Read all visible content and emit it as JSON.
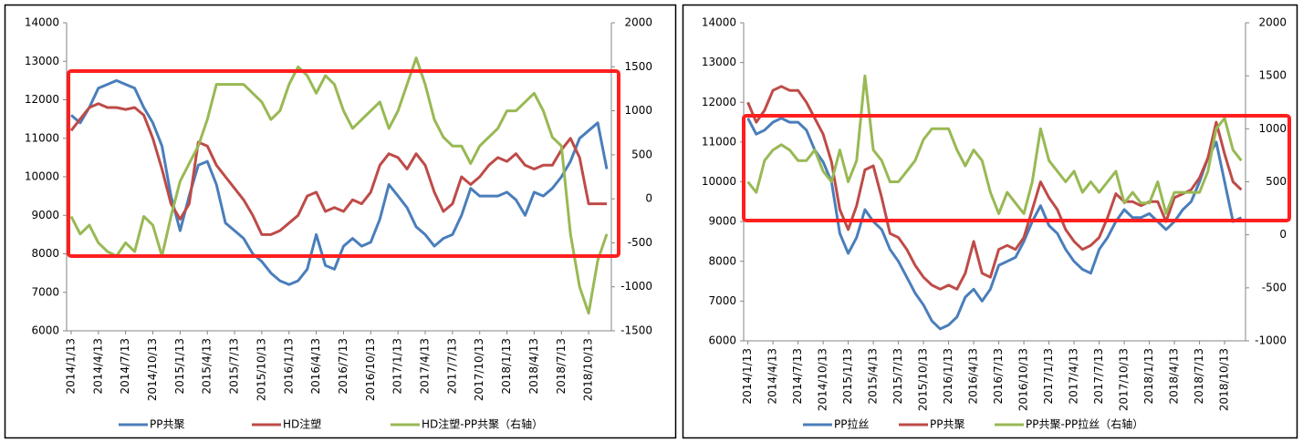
{
  "chart_data": [
    {
      "type": "line",
      "categories": [
        "2014/1/13",
        null,
        null,
        "2014/4/13",
        null,
        null,
        "2014/7/13",
        null,
        null,
        "2014/10/13",
        null,
        null,
        "2015/1/13",
        null,
        null,
        "2015/4/13",
        null,
        null,
        "2015/7/13",
        null,
        null,
        "2015/10/13",
        null,
        null,
        "2016/1/13",
        null,
        null,
        "2016/4/13",
        null,
        null,
        "2016/7/13",
        null,
        null,
        "2016/10/13",
        null,
        null,
        "2017/1/13",
        null,
        null,
        "2017/4/13",
        null,
        null,
        "2017/7/13",
        null,
        null,
        "2017/10/13",
        null,
        null,
        "2018/1/13",
        null,
        null,
        "2018/4/13",
        null,
        null,
        "2018/7/13",
        null,
        null,
        "2018/10/13",
        null,
        null
      ],
      "series": [
        {
          "name": "PP共聚",
          "color": "#4a7ebb",
          "values": [
            11600,
            11400,
            11800,
            12300,
            12400,
            12500,
            12400,
            12300,
            11800,
            11400,
            10800,
            9500,
            8600,
            9500,
            10300,
            10400,
            9800,
            8800,
            8600,
            8400,
            8000,
            7800,
            7500,
            7300,
            7200,
            7300,
            7600,
            8500,
            7700,
            7600,
            8200,
            8400,
            8200,
            8300,
            8900,
            9800,
            9500,
            9200,
            8700,
            8500,
            8200,
            8400,
            8500,
            9000,
            9700,
            9500,
            9500,
            9500,
            9600,
            9400,
            9000,
            9600,
            9500,
            9700,
            10000,
            10400,
            11000,
            11200,
            11400,
            10200
          ]
        },
        {
          "name": "HD注塑",
          "color": "#be4b48",
          "values": [
            11200,
            11500,
            11800,
            11900,
            11800,
            11800,
            11750,
            11800,
            11600,
            11000,
            10200,
            9300,
            8900,
            9300,
            10900,
            10800,
            10300,
            10000,
            9700,
            9400,
            9000,
            8500,
            8500,
            8600,
            8800,
            9000,
            9500,
            9600,
            9100,
            9200,
            9100,
            9400,
            9300,
            9600,
            10300,
            10600,
            10500,
            10200,
            10600,
            10300,
            9600,
            9100,
            9300,
            10000,
            9800,
            10000,
            10300,
            10500,
            10400,
            10600,
            10300,
            10200,
            10300,
            10300,
            10700,
            11000,
            10500,
            9300,
            9300,
            9300
          ]
        },
        {
          "name": "HD注塑-PP共聚（右轴）",
          "color": "#98b954",
          "axis": "y2",
          "values": [
            -200,
            -400,
            -300,
            -500,
            -600,
            -650,
            -500,
            -600,
            -200,
            -300,
            -650,
            -200,
            200,
            400,
            600,
            900,
            1300,
            1300,
            1300,
            1300,
            1200,
            1100,
            900,
            1000,
            1300,
            1500,
            1400,
            1200,
            1400,
            1300,
            1000,
            800,
            900,
            1000,
            1100,
            800,
            1000,
            1300,
            1600,
            1300,
            900,
            700,
            600,
            600,
            400,
            600,
            700,
            800,
            1000,
            1000,
            1100,
            1200,
            1000,
            700,
            600,
            -400,
            -1000,
            -1300,
            -700,
            -400
          ]
        }
      ],
      "ylim": [
        6000,
        14000
      ],
      "yticks": [
        6000,
        7000,
        8000,
        9000,
        10000,
        11000,
        12000,
        13000,
        14000
      ],
      "y2lim": [
        -1500,
        2000
      ],
      "y2ticks": [
        -1500,
        -1000,
        -500,
        0,
        500,
        1000,
        1500,
        2000
      ],
      "legend": "bottom",
      "grid": false
    },
    {
      "type": "line",
      "categories": [
        "2014/1/13",
        null,
        null,
        "2014/4/13",
        null,
        null,
        "2014/7/13",
        null,
        null,
        "2014/10/13",
        null,
        null,
        "2015/1/13",
        null,
        null,
        "2015/4/13",
        null,
        null,
        "2015/7/13",
        null,
        null,
        "2015/10/13",
        null,
        null,
        "2016/1/13",
        null,
        null,
        "2016/4/13",
        null,
        null,
        "2016/7/13",
        null,
        null,
        "2016/10/13",
        null,
        null,
        "2017/1/13",
        null,
        null,
        "2017/4/13",
        null,
        null,
        "2017/7/13",
        null,
        null,
        "2017/10/13",
        null,
        null,
        "2018/1/13",
        null,
        null,
        "2018/4/13",
        null,
        null,
        "2018/7/13",
        null,
        null,
        "2018/10/13",
        null,
        null
      ],
      "series": [
        {
          "name": "PP拉丝",
          "color": "#4a7ebb",
          "values": [
            11600,
            11200,
            11300,
            11500,
            11600,
            11500,
            11500,
            11300,
            10800,
            10500,
            10000,
            8700,
            8200,
            8600,
            9300,
            9000,
            8800,
            8300,
            8000,
            7600,
            7200,
            6900,
            6500,
            6300,
            6400,
            6600,
            7100,
            7300,
            7000,
            7300,
            7900,
            8000,
            8100,
            8500,
            9000,
            9400,
            8900,
            8700,
            8300,
            8000,
            7800,
            7700,
            8300,
            8600,
            9000,
            9300,
            9100,
            9100,
            9200,
            9000,
            8800,
            9000,
            9300,
            9500,
            10000,
            10600,
            11000,
            10000,
            9000,
            9100
          ]
        },
        {
          "name": "PP共聚",
          "color": "#be4b48",
          "values": [
            12000,
            11500,
            11800,
            12300,
            12400,
            12300,
            12300,
            12000,
            11600,
            11200,
            10500,
            9300,
            8800,
            9400,
            10300,
            10400,
            9600,
            8700,
            8600,
            8300,
            7900,
            7600,
            7400,
            7300,
            7400,
            7300,
            7700,
            8500,
            7700,
            7600,
            8300,
            8400,
            8300,
            8600,
            9300,
            10000,
            9600,
            9300,
            8800,
            8500,
            8300,
            8400,
            8600,
            9100,
            9700,
            9500,
            9500,
            9400,
            9500,
            9500,
            9000,
            9600,
            9700,
            9800,
            10100,
            10600,
            11500,
            10700,
            10000,
            9800
          ]
        },
        {
          "name": "PP共聚-PP拉丝（右轴）",
          "color": "#98b954",
          "axis": "y2",
          "values": [
            500,
            400,
            700,
            800,
            850,
            800,
            700,
            700,
            800,
            600,
            500,
            800,
            500,
            700,
            1500,
            800,
            700,
            500,
            500,
            600,
            700,
            900,
            1000,
            1000,
            1000,
            800,
            650,
            800,
            700,
            400,
            200,
            400,
            300,
            200,
            500,
            1000,
            700,
            600,
            500,
            600,
            400,
            500,
            400,
            500,
            600,
            300,
            400,
            300,
            300,
            500,
            200,
            400,
            400,
            400,
            400,
            600,
            1000,
            1100,
            800,
            700
          ]
        }
      ],
      "ylim": [
        6000,
        14000
      ],
      "yticks": [
        6000,
        7000,
        8000,
        9000,
        10000,
        11000,
        12000,
        13000,
        14000
      ],
      "y2lim": [
        -1000,
        2000
      ],
      "y2ticks": [
        -1000,
        -500,
        0,
        500,
        1000,
        1500,
        2000
      ],
      "legend": "bottom",
      "grid": false
    }
  ]
}
